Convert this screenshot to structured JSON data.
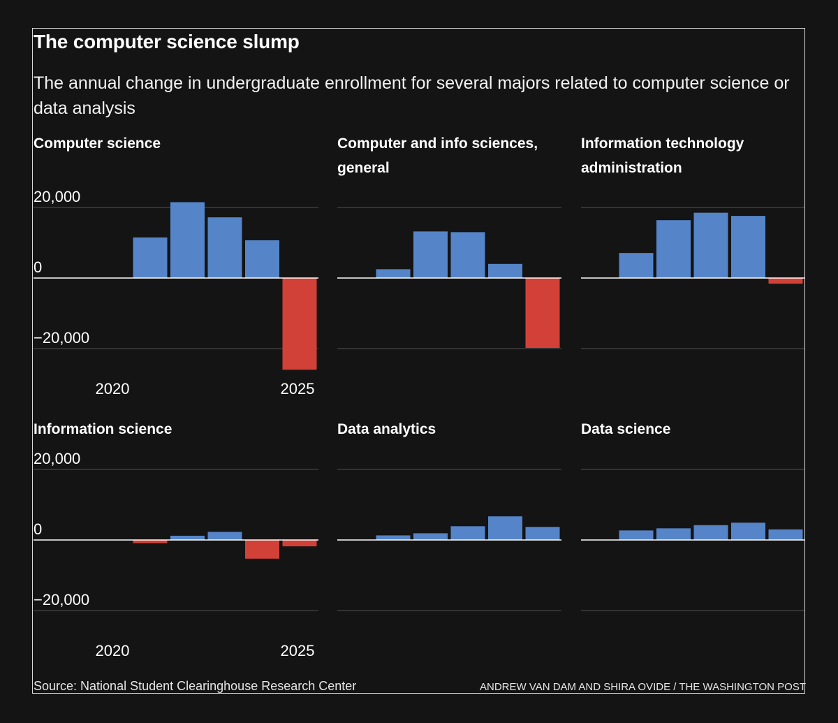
{
  "title": "The computer science slump",
  "subtitle": "The annual change in undergraduate enrollment for several majors related to computer science or data analysis",
  "source": "Source: National Student Clearinghouse Research Center",
  "credit": "ANDREW VAN DAM AND SHIRA OVIDE / THE WASHINGTON POST",
  "colors": {
    "positive": "#5585c8",
    "negative": "#d24137",
    "background": "#141414",
    "gridline": "#444444",
    "zero_line": "#ffffff"
  },
  "panel_titles": [
    "Computer science",
    "Computer and info sciences, general",
    "Information technology administration",
    "Information science",
    "Data analytics",
    "Data science"
  ],
  "y_tick_labels": [
    "20,000",
    "0",
    "−20,000"
  ],
  "x_tick_labels": [
    "2020",
    "2025"
  ],
  "chart_data": [
    {
      "type": "bar",
      "title": "Computer science",
      "x": [
        2021,
        2022,
        2023,
        2024,
        2025
      ],
      "values": [
        11500,
        21500,
        17200,
        10700,
        -26000
      ],
      "ylim": [
        -30000,
        20000
      ],
      "yticks": [
        -20000,
        0,
        20000
      ],
      "xticks": [
        2020,
        2025
      ],
      "grid": true
    },
    {
      "type": "bar",
      "title": "Computer and info sciences, general",
      "x": [
        2021,
        2022,
        2023,
        2024,
        2025
      ],
      "values": [
        2500,
        13200,
        13000,
        4000,
        -19800
      ],
      "ylim": [
        -30000,
        20000
      ],
      "yticks": [
        -20000,
        0,
        20000
      ],
      "xticks": [
        2020,
        2025
      ],
      "grid": true
    },
    {
      "type": "bar",
      "title": "Information technology administration",
      "x": [
        2021,
        2022,
        2023,
        2024,
        2025
      ],
      "values": [
        7100,
        16400,
        18500,
        17600,
        -1600
      ],
      "ylim": [
        -30000,
        20000
      ],
      "yticks": [
        -20000,
        0,
        20000
      ],
      "xticks": [
        2020,
        2025
      ],
      "grid": true
    },
    {
      "type": "bar",
      "title": "Information science",
      "x": [
        2021,
        2022,
        2023,
        2024,
        2025
      ],
      "values": [
        -900,
        1200,
        2300,
        -5300,
        -1800
      ],
      "ylim": [
        -30000,
        20000
      ],
      "yticks": [
        -20000,
        0,
        20000
      ],
      "xticks": [
        2020,
        2025
      ],
      "grid": true
    },
    {
      "type": "bar",
      "title": "Data analytics",
      "x": [
        2021,
        2022,
        2023,
        2024,
        2025
      ],
      "values": [
        1300,
        1900,
        3900,
        6700,
        3700
      ],
      "ylim": [
        -30000,
        20000
      ],
      "yticks": [
        -20000,
        0,
        20000
      ],
      "xticks": [
        2020,
        2025
      ],
      "grid": true
    },
    {
      "type": "bar",
      "title": "Data science",
      "x": [
        2021,
        2022,
        2023,
        2024,
        2025
      ],
      "values": [
        2700,
        3300,
        4200,
        4900,
        3000
      ],
      "ylim": [
        -30000,
        20000
      ],
      "yticks": [
        -20000,
        0,
        20000
      ],
      "xticks": [
        2020,
        2025
      ],
      "grid": true
    }
  ]
}
